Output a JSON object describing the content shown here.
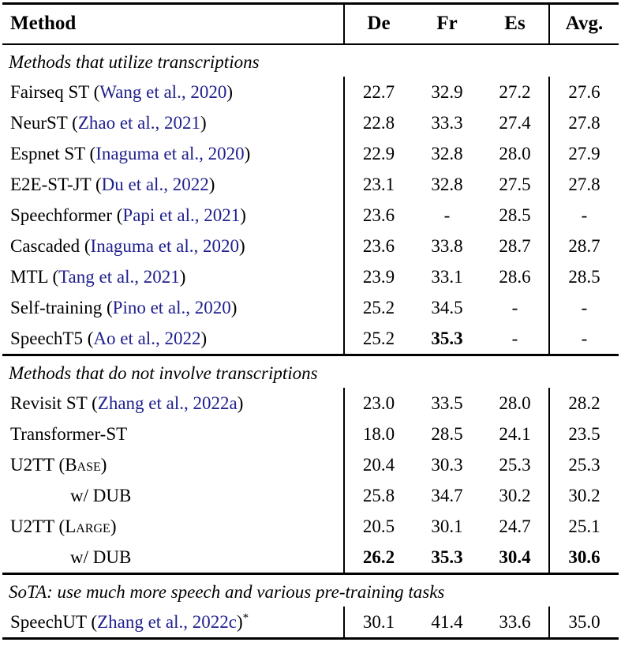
{
  "page": {
    "background": "#ffffff",
    "text_color": "#000000",
    "citation_color": "#20208e"
  },
  "table": {
    "columns": [
      "Method",
      "De",
      "Fr",
      "Es",
      "Avg."
    ],
    "sections": [
      {
        "header": "Methods that utilize transcriptions",
        "rows": [
          {
            "method": [
              {
                "t": "Fairseq ST (",
                "k": "text"
              },
              {
                "t": "Wang et al., 2020",
                "k": "cite"
              },
              {
                "t": ")",
                "k": "text"
              }
            ],
            "indent": false,
            "values": [
              "22.7",
              "32.9",
              "27.2",
              "27.6"
            ],
            "bold": [
              false,
              false,
              false,
              false
            ]
          },
          {
            "method": [
              {
                "t": "NeurST (",
                "k": "text"
              },
              {
                "t": "Zhao et al., 2021",
                "k": "cite"
              },
              {
                "t": ")",
                "k": "text"
              }
            ],
            "indent": false,
            "values": [
              "22.8",
              "33.3",
              "27.4",
              "27.8"
            ],
            "bold": [
              false,
              false,
              false,
              false
            ]
          },
          {
            "method": [
              {
                "t": "Espnet ST (",
                "k": "text"
              },
              {
                "t": "Inaguma et al., 2020",
                "k": "cite"
              },
              {
                "t": ")",
                "k": "text"
              }
            ],
            "indent": false,
            "values": [
              "22.9",
              "32.8",
              "28.0",
              "27.9"
            ],
            "bold": [
              false,
              false,
              false,
              false
            ]
          },
          {
            "method": [
              {
                "t": "E2E-ST-JT (",
                "k": "text"
              },
              {
                "t": "Du et al., 2022",
                "k": "cite"
              },
              {
                "t": ")",
                "k": "text"
              }
            ],
            "indent": false,
            "values": [
              "23.1",
              "32.8",
              "27.5",
              "27.8"
            ],
            "bold": [
              false,
              false,
              false,
              false
            ]
          },
          {
            "method": [
              {
                "t": "Speechformer (",
                "k": "text"
              },
              {
                "t": "Papi et al., 2021",
                "k": "cite"
              },
              {
                "t": ")",
                "k": "text"
              }
            ],
            "indent": false,
            "values": [
              "23.6",
              "-",
              "28.5",
              "-"
            ],
            "bold": [
              false,
              false,
              false,
              false
            ]
          },
          {
            "method": [
              {
                "t": "Cascaded (",
                "k": "text"
              },
              {
                "t": "Inaguma et al., 2020",
                "k": "cite"
              },
              {
                "t": ")",
                "k": "text"
              }
            ],
            "indent": false,
            "values": [
              "23.6",
              "33.8",
              "28.7",
              "28.7"
            ],
            "bold": [
              false,
              false,
              false,
              false
            ]
          },
          {
            "method": [
              {
                "t": "MTL (",
                "k": "text"
              },
              {
                "t": "Tang et al., 2021",
                "k": "cite"
              },
              {
                "t": ")",
                "k": "text"
              }
            ],
            "indent": false,
            "values": [
              "23.9",
              "33.1",
              "28.6",
              "28.5"
            ],
            "bold": [
              false,
              false,
              false,
              false
            ]
          },
          {
            "method": [
              {
                "t": "Self-training (",
                "k": "text"
              },
              {
                "t": "Pino et al., 2020",
                "k": "cite"
              },
              {
                "t": ")",
                "k": "text"
              }
            ],
            "indent": false,
            "values": [
              "25.2",
              "34.5",
              "-",
              "-"
            ],
            "bold": [
              false,
              false,
              false,
              false
            ]
          },
          {
            "method": [
              {
                "t": "SpeechT5 (",
                "k": "text"
              },
              {
                "t": "Ao et al., 2022",
                "k": "cite"
              },
              {
                "t": ")",
                "k": "text"
              }
            ],
            "indent": false,
            "values": [
              "25.2",
              "35.3",
              "-",
              "-"
            ],
            "bold": [
              false,
              true,
              false,
              false
            ]
          }
        ]
      },
      {
        "header": "Methods that do not involve transcriptions",
        "rows": [
          {
            "method": [
              {
                "t": "Revisit ST (",
                "k": "text"
              },
              {
                "t": "Zhang et al., 2022a",
                "k": "cite"
              },
              {
                "t": ")",
                "k": "text"
              }
            ],
            "indent": false,
            "values": [
              "23.0",
              "33.5",
              "28.0",
              "28.2"
            ],
            "bold": [
              false,
              false,
              false,
              false
            ]
          },
          {
            "method": [
              {
                "t": "Transformer-ST",
                "k": "text"
              }
            ],
            "indent": false,
            "values": [
              "18.0",
              "28.5",
              "24.1",
              "23.5"
            ],
            "bold": [
              false,
              false,
              false,
              false
            ]
          },
          {
            "method": [
              {
                "t": "U2TT (",
                "k": "text"
              },
              {
                "t": "Base",
                "k": "sc"
              },
              {
                "t": ")",
                "k": "text"
              }
            ],
            "indent": false,
            "values": [
              "20.4",
              "30.3",
              "25.3",
              "25.3"
            ],
            "bold": [
              false,
              false,
              false,
              false
            ]
          },
          {
            "method": [
              {
                "t": "w/ DUB",
                "k": "text"
              }
            ],
            "indent": true,
            "values": [
              "25.8",
              "34.7",
              "30.2",
              "30.2"
            ],
            "bold": [
              false,
              false,
              false,
              false
            ]
          },
          {
            "method": [
              {
                "t": "U2TT (",
                "k": "text"
              },
              {
                "t": "Large",
                "k": "sc"
              },
              {
                "t": ")",
                "k": "text"
              }
            ],
            "indent": false,
            "values": [
              "20.5",
              "30.1",
              "24.7",
              "25.1"
            ],
            "bold": [
              false,
              false,
              false,
              false
            ]
          },
          {
            "method": [
              {
                "t": "w/ DUB",
                "k": "text"
              }
            ],
            "indent": true,
            "values": [
              "26.2",
              "35.3",
              "30.4",
              "30.6"
            ],
            "bold": [
              true,
              true,
              true,
              true
            ]
          }
        ]
      },
      {
        "header": "SoTA: use much more speech and various pre-training tasks",
        "rows": [
          {
            "method": [
              {
                "t": "SpeechUT (",
                "k": "text"
              },
              {
                "t": "Zhang et al., 2022c",
                "k": "cite"
              },
              {
                "t": ")",
                "k": "text"
              },
              {
                "t": "*",
                "k": "sup"
              }
            ],
            "indent": false,
            "values": [
              "30.1",
              "41.4",
              "33.6",
              "35.0"
            ],
            "bold": [
              false,
              false,
              false,
              false
            ]
          }
        ]
      }
    ]
  }
}
